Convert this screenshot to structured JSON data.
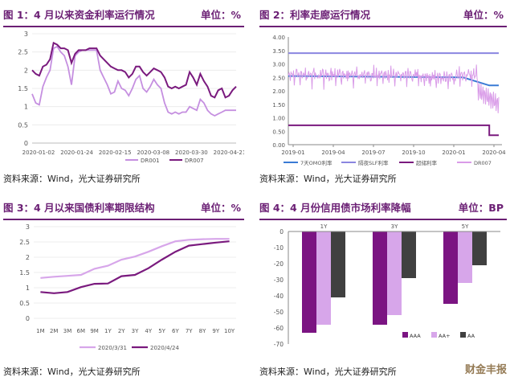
{
  "panels": {
    "p1": {
      "title": "图 1：4 月以来资金利率运行情况",
      "unit": "单位：%",
      "source": "资料来源：Wind，光大证券研究所"
    },
    "p2": {
      "title": "图 2：利率走廊运行情况",
      "unit": "单位：%",
      "source": "资料来源：Wind，光大证券研究所"
    },
    "p3": {
      "title": "图 3：4 月以来国债利率期限结构",
      "unit": "单位：%",
      "source": "资料来源：Wind，光大证券研究所"
    },
    "p4": {
      "title": "图 4：4 月份信用债市场利率降幅",
      "unit": "单位：BP",
      "source": "资料来源：Wind，光大证券研究所"
    }
  },
  "watermark": "财金丰报",
  "chart_data": [
    {
      "type": "line",
      "id": "chart1",
      "x_ticks": [
        "2020-01-02",
        "2020-01-24",
        "2020-02-15",
        "2020-03-08",
        "2020-03-30",
        "2020-04-21"
      ],
      "ylim": [
        0,
        3
      ],
      "y_ticks": [
        "0",
        "0.5",
        "1",
        "1.5",
        "2",
        "2.5",
        "3"
      ],
      "legend_position": "bottom-right",
      "series": [
        {
          "name": "DR001",
          "color": "#c58fe0",
          "values": [
            1.35,
            1.1,
            1.05,
            1.55,
            1.8,
            2.0,
            2.6,
            2.65,
            2.5,
            2.4,
            2.1,
            1.6,
            2.4,
            2.5,
            2.55,
            2.55,
            2.55,
            2.55,
            2.55,
            2.0,
            1.8,
            1.6,
            1.35,
            1.4,
            1.7,
            1.5,
            1.45,
            1.3,
            1.5,
            1.75,
            1.85,
            1.5,
            1.4,
            1.55,
            1.75,
            1.6,
            1.5,
            1.1,
            0.85,
            0.8,
            0.85,
            0.8,
            0.85,
            0.85,
            1.0,
            0.95,
            0.9,
            1.2,
            1.1,
            0.9,
            0.8,
            0.75,
            0.8,
            0.85,
            0.9,
            0.9,
            0.9,
            0.9
          ]
        },
        {
          "name": "DR007",
          "color": "#7a1a7e",
          "values": [
            2.0,
            1.9,
            1.85,
            2.1,
            2.15,
            2.3,
            2.75,
            2.7,
            2.6,
            2.6,
            2.55,
            2.2,
            2.45,
            2.55,
            2.55,
            2.55,
            2.6,
            2.6,
            2.6,
            2.4,
            2.3,
            2.2,
            2.1,
            2.05,
            2.0,
            2.0,
            1.95,
            1.8,
            1.9,
            2.1,
            2.1,
            1.95,
            1.85,
            1.95,
            2.05,
            2.0,
            1.95,
            1.8,
            1.55,
            1.5,
            1.55,
            1.5,
            1.55,
            1.6,
            1.95,
            1.8,
            1.6,
            1.9,
            1.7,
            1.55,
            1.3,
            1.25,
            1.45,
            1.5,
            1.25,
            1.3,
            1.45,
            1.55
          ]
        }
      ]
    },
    {
      "type": "line",
      "id": "chart2",
      "x_ticks": [
        "2019-01",
        "2019-04",
        "2019-07",
        "2019-10",
        "2020-01",
        "2020-04"
      ],
      "ylim": [
        0,
        4
      ],
      "y_ticks": [
        "0.00",
        "0.50",
        "1.00",
        "1.50",
        "2.00",
        "2.50",
        "3.00",
        "3.50",
        "4.00"
      ],
      "legend_position": "bottom",
      "series": [
        {
          "name": "7天OMO利率",
          "color": "#3a7bd5",
          "steps": [
            [
              0,
              2.55
            ],
            [
              0.83,
              2.5
            ],
            [
              0.955,
              2.2
            ],
            [
              1.0,
              2.2
            ]
          ]
        },
        {
          "name": "隔夜SLF利率",
          "color": "#8a86e0",
          "steps": [
            [
              0,
              3.4
            ],
            [
              1.0,
              3.4
            ]
          ]
        },
        {
          "name": "超储利率",
          "color": "#7a1a7e",
          "steps": [
            [
              0,
              0.72
            ],
            [
              0.955,
              0.72
            ],
            [
              0.955,
              0.35
            ],
            [
              1.0,
              0.35
            ]
          ]
        },
        {
          "name": "DR007",
          "color": "#d99be8",
          "noisy": true,
          "base": 2.6
        }
      ]
    },
    {
      "type": "line",
      "id": "chart3",
      "categories": [
        "1M",
        "2M",
        "3M",
        "6M",
        "9M",
        "1Y",
        "2Y",
        "3Y",
        "4Y",
        "5Y",
        "6Y",
        "7Y",
        "8Y",
        "9Y",
        "10Y"
      ],
      "ylim": [
        0,
        3
      ],
      "y_ticks": [
        "0",
        "0.5",
        "1",
        "1.5",
        "2",
        "2.5",
        "3"
      ],
      "legend_position": "bottom",
      "series": [
        {
          "name": "2020/3/31",
          "color": "#d7a6ea",
          "values": [
            1.32,
            1.36,
            1.39,
            1.42,
            1.62,
            1.72,
            1.92,
            2.02,
            2.18,
            2.36,
            2.52,
            2.57,
            2.59,
            2.6,
            2.6
          ]
        },
        {
          "name": "2020/4/24",
          "color": "#7a1a7e",
          "values": [
            0.86,
            0.82,
            0.86,
            1.02,
            1.13,
            1.14,
            1.38,
            1.42,
            1.64,
            1.92,
            2.18,
            2.38,
            2.43,
            2.48,
            2.52
          ]
        }
      ]
    },
    {
      "type": "bar",
      "id": "chart4",
      "categories": [
        "1Y",
        "3Y",
        "5Y"
      ],
      "ylim": [
        -70,
        0
      ],
      "y_ticks": [
        "0",
        "-10",
        "-20",
        "-30",
        "-40",
        "-50",
        "-60",
        "-70"
      ],
      "legend_position": "bottom-right",
      "series": [
        {
          "name": "AAA",
          "color": "#7b1482",
          "values": [
            -63,
            -58,
            -45
          ]
        },
        {
          "name": "AA+",
          "color": "#d7a6ea",
          "values": [
            -58,
            -52,
            -32
          ]
        },
        {
          "name": "AA",
          "color": "#404040",
          "values": [
            -41,
            -29,
            -21
          ]
        }
      ]
    }
  ]
}
